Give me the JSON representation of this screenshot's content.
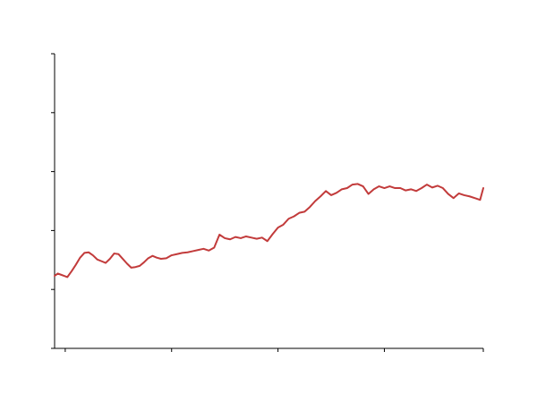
{
  "chart_data": {
    "type": "line",
    "title": "",
    "xlabel": "",
    "ylabel": "",
    "xlim": [
      -10,
      393
    ],
    "ylim": [
      0,
      5
    ],
    "x_ticks": [
      0,
      100,
      200,
      300,
      393
    ],
    "y_ticks": [
      0,
      1,
      2,
      3,
      4,
      5
    ],
    "grid": false,
    "legend": "none",
    "colors": {
      "line": "#c23b3b",
      "axis": "#000000",
      "background": "#ffffff"
    },
    "series": [
      {
        "name": "series-1",
        "x": [
          -10,
          -7,
          -4,
          -1,
          2,
          6,
          10,
          14,
          18,
          22,
          26,
          30,
          34,
          38,
          42,
          46,
          50,
          54,
          58,
          62,
          66,
          70,
          74,
          78,
          82,
          86,
          90,
          95,
          100,
          105,
          110,
          115,
          120,
          125,
          130,
          135,
          140,
          145,
          150,
          155,
          160,
          165,
          170,
          175,
          180,
          185,
          190,
          195,
          200,
          205,
          210,
          215,
          220,
          225,
          230,
          235,
          240,
          245,
          250,
          255,
          260,
          265,
          270,
          275,
          280,
          285,
          290,
          295,
          300,
          305,
          310,
          315,
          320,
          325,
          330,
          335,
          340,
          345,
          350,
          355,
          360,
          365,
          370,
          375,
          380,
          385,
          390,
          393
        ],
        "values": [
          1.23,
          1.27,
          1.25,
          1.23,
          1.21,
          1.31,
          1.42,
          1.54,
          1.62,
          1.63,
          1.58,
          1.51,
          1.48,
          1.45,
          1.52,
          1.61,
          1.6,
          1.52,
          1.44,
          1.37,
          1.38,
          1.4,
          1.46,
          1.53,
          1.57,
          1.54,
          1.52,
          1.53,
          1.58,
          1.6,
          1.62,
          1.63,
          1.65,
          1.67,
          1.69,
          1.66,
          1.71,
          1.93,
          1.87,
          1.85,
          1.89,
          1.87,
          1.9,
          1.88,
          1.86,
          1.88,
          1.82,
          1.94,
          2.05,
          2.1,
          2.2,
          2.24,
          2.3,
          2.32,
          2.4,
          2.5,
          2.58,
          2.67,
          2.6,
          2.64,
          2.7,
          2.72,
          2.78,
          2.79,
          2.75,
          2.62,
          2.7,
          2.75,
          2.72,
          2.75,
          2.72,
          2.72,
          2.68,
          2.7,
          2.67,
          2.72,
          2.78,
          2.73,
          2.76,
          2.72,
          2.62,
          2.55,
          2.63,
          2.6,
          2.58,
          2.55,
          2.52,
          2.72
        ]
      }
    ]
  }
}
